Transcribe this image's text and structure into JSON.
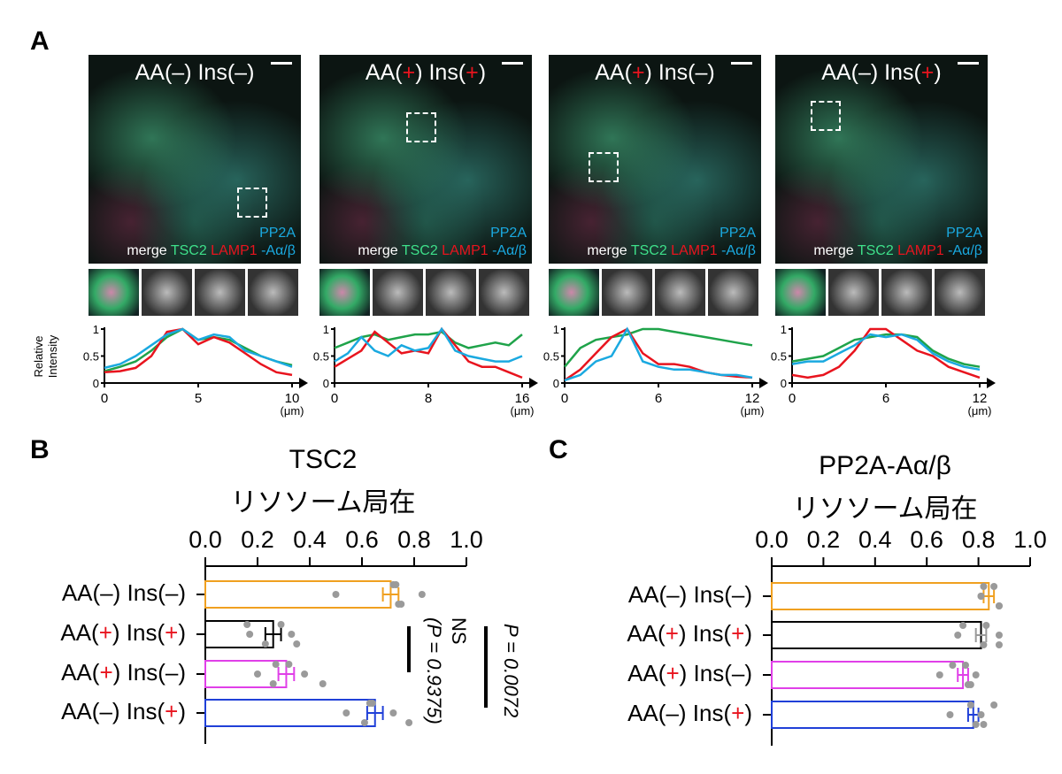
{
  "panel_labels": {
    "a": "A",
    "b": "B",
    "c": "C"
  },
  "conditions": [
    {
      "aa": "–",
      "ins": "–",
      "aa_pos": false,
      "ins_pos": false
    },
    {
      "aa": "+",
      "ins": "+",
      "aa_pos": true,
      "ins_pos": true
    },
    {
      "aa": "+",
      "ins": "–",
      "aa_pos": true,
      "ins_pos": false
    },
    {
      "aa": "–",
      "ins": "+",
      "aa_pos": false,
      "ins_pos": true
    }
  ],
  "label_parts": {
    "aa": "AA(",
    "mid": ") Ins(",
    "end": ")"
  },
  "legend": {
    "merge": "merge",
    "tsc2": "TSC2",
    "lamp1": "LAMP1",
    "pp2a_1": "PP2A",
    "pp2a_2": "-Aα/β"
  },
  "colors": {
    "tsc2": "#1fa34a",
    "lamp1": "#e8141e",
    "pp2a": "#1aa9e0",
    "plus": "#e8141e",
    "bars": [
      "#f0a020",
      "#000000",
      "#e040e8",
      "#2040d8"
    ],
    "dots": "#9a9a9a"
  },
  "chart_data": [
    {
      "type": "line",
      "ylabel": "Relative Intensity",
      "yticks": [
        "0",
        "0.5",
        "1"
      ],
      "xticks": [
        "0",
        "5",
        "10"
      ],
      "xunit": "(μm)",
      "xmax": 10,
      "series": [
        {
          "name": "TSC2",
          "y": [
            0.22,
            0.3,
            0.4,
            0.6,
            0.85,
            1,
            0.8,
            0.85,
            0.8,
            0.65,
            0.5,
            0.4,
            0.33
          ]
        },
        {
          "name": "LAMP1",
          "y": [
            0.2,
            0.22,
            0.28,
            0.5,
            0.95,
            1,
            0.72,
            0.85,
            0.75,
            0.55,
            0.35,
            0.2,
            0.15
          ]
        },
        {
          "name": "PP2A",
          "y": [
            0.28,
            0.35,
            0.5,
            0.7,
            0.9,
            1,
            0.8,
            0.9,
            0.85,
            0.6,
            0.5,
            0.4,
            0.3
          ]
        }
      ]
    },
    {
      "type": "line",
      "xticks": [
        "0",
        "8",
        "16"
      ],
      "xunit": "(μm)",
      "xmax": 16,
      "series": [
        {
          "name": "TSC2",
          "y": [
            0.65,
            0.75,
            0.85,
            0.9,
            0.8,
            0.85,
            0.9,
            0.9,
            0.95,
            0.75,
            0.65,
            0.7,
            0.75,
            0.7,
            0.9
          ]
        },
        {
          "name": "LAMP1",
          "y": [
            0.3,
            0.45,
            0.6,
            0.95,
            0.75,
            0.55,
            0.6,
            0.55,
            1,
            0.7,
            0.4,
            0.3,
            0.3,
            0.2,
            0.1
          ]
        },
        {
          "name": "PP2A",
          "y": [
            0.4,
            0.55,
            0.85,
            0.6,
            0.5,
            0.7,
            0.6,
            0.65,
            1,
            0.6,
            0.5,
            0.45,
            0.4,
            0.4,
            0.5
          ]
        }
      ]
    },
    {
      "type": "line",
      "xticks": [
        "0",
        "6",
        "12"
      ],
      "xunit": "(μm)",
      "xmax": 12,
      "series": [
        {
          "name": "TSC2",
          "y": [
            0.3,
            0.65,
            0.8,
            0.85,
            0.9,
            1,
            1,
            0.95,
            0.9,
            0.85,
            0.8,
            0.75,
            0.7
          ]
        },
        {
          "name": "LAMP1",
          "y": [
            0.05,
            0.25,
            0.55,
            0.85,
            1,
            0.55,
            0.35,
            0.35,
            0.3,
            0.2,
            0.15,
            0.12,
            0.1
          ]
        },
        {
          "name": "PP2A",
          "y": [
            0.05,
            0.15,
            0.4,
            0.5,
            1,
            0.4,
            0.3,
            0.25,
            0.25,
            0.2,
            0.15,
            0.15,
            0.1
          ]
        }
      ]
    },
    {
      "type": "line",
      "xticks": [
        "0",
        "6",
        "12"
      ],
      "xunit": "(μm)",
      "xmax": 12,
      "series": [
        {
          "name": "TSC2",
          "y": [
            0.4,
            0.45,
            0.5,
            0.65,
            0.8,
            0.85,
            0.9,
            0.9,
            0.85,
            0.6,
            0.45,
            0.35,
            0.3
          ]
        },
        {
          "name": "LAMP1",
          "y": [
            0.15,
            0.1,
            0.15,
            0.3,
            0.6,
            1,
            1,
            0.8,
            0.6,
            0.5,
            0.3,
            0.2,
            0.1
          ]
        },
        {
          "name": "PP2A",
          "y": [
            0.35,
            0.4,
            0.4,
            0.55,
            0.7,
            0.9,
            0.85,
            0.9,
            0.8,
            0.55,
            0.4,
            0.3,
            0.25
          ]
        }
      ]
    },
    {
      "type": "bar",
      "title": "TSC2",
      "subtitle": "リソソーム局在",
      "xlim": [
        0,
        1
      ],
      "xticks": [
        "0.0",
        "0.2",
        "0.4",
        "0.6",
        "0.8",
        "1.0"
      ],
      "values": [
        0.71,
        0.26,
        0.31,
        0.65
      ],
      "errors": [
        0.03,
        0.03,
        0.03,
        0.03
      ],
      "points": [
        [
          0.5,
          0.73,
          0.74,
          0.72,
          0.83,
          0.75
        ],
        [
          0.17,
          0.16,
          0.23,
          0.29,
          0.33,
          0.35
        ],
        [
          0.2,
          0.27,
          0.26,
          0.32,
          0.38,
          0.45
        ],
        [
          0.54,
          0.63,
          0.61,
          0.64,
          0.72,
          0.78
        ]
      ],
      "stats": {
        "ns": "NS",
        "ns_p": "(P = 0.9375)",
        "p": "P = 0.0072"
      }
    },
    {
      "type": "bar",
      "title": "PP2A-Aα/β",
      "subtitle": "リソソーム局在",
      "xlim": [
        0,
        1
      ],
      "xticks": [
        "0.0",
        "0.2",
        "0.4",
        "0.6",
        "0.8",
        "1.0"
      ],
      "values": [
        0.84,
        0.81,
        0.74,
        0.78
      ],
      "errors": [
        0.02,
        0.02,
        0.02,
        0.02
      ],
      "points": [
        [
          0.81,
          0.82,
          0.88,
          0.86,
          0.81,
          0.88
        ],
        [
          0.72,
          0.74,
          0.82,
          0.83,
          0.88,
          0.88
        ],
        [
          0.65,
          0.7,
          0.77,
          0.75,
          0.79,
          0.76
        ],
        [
          0.69,
          0.77,
          0.82,
          0.86,
          0.81,
          0.79
        ]
      ]
    }
  ]
}
